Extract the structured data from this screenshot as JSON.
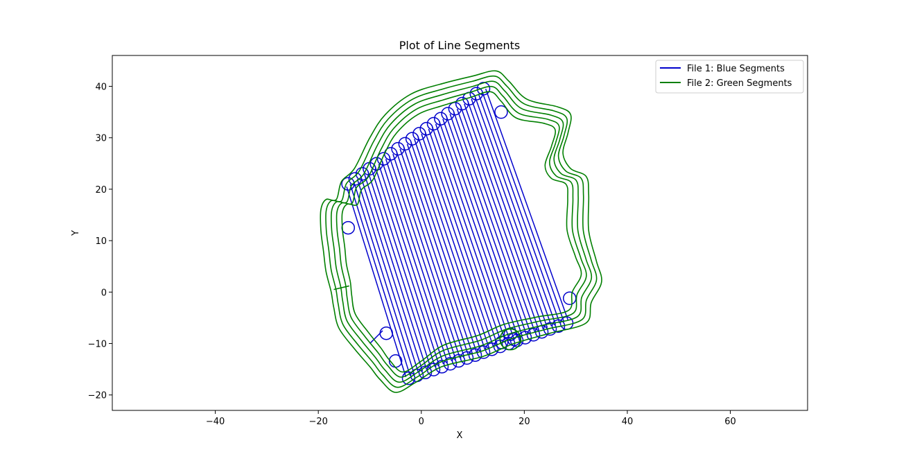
{
  "chart_data": {
    "type": "line",
    "title": "Plot of Line Segments",
    "xlabel": "X",
    "ylabel": "Y",
    "xlim": [
      -60,
      75
    ],
    "ylim": [
      -23,
      46
    ],
    "xticks": [
      -40,
      -20,
      0,
      20,
      40,
      60
    ],
    "yticks": [
      -20,
      -10,
      0,
      10,
      20,
      30,
      40
    ],
    "grid": false,
    "legend_position": "top-right",
    "series": [
      {
        "name": "File 1: Blue Segments",
        "color": "#0000cc",
        "style": "serpentine raster fill of a tilted rectangle with circular turn loops",
        "corners": [
          [
            -14.5,
            20.5
          ],
          [
            12.5,
            39.5
          ],
          [
            28.5,
            -5.5
          ],
          [
            -3.0,
            -16.5
          ]
        ],
        "passes": 40,
        "loops": [
          [
            -14.2,
            12.5
          ],
          [
            15.5,
            35.0
          ],
          [
            28.8,
            -1.2
          ],
          [
            -6.8,
            -8.0
          ],
          [
            -5.0,
            -13.4
          ],
          [
            15.6,
            -9.8
          ],
          [
            17.3,
            -8.2
          ],
          [
            18.0,
            -9.2
          ]
        ],
        "extra_polyline": [
          [
            -10,
            -10
          ],
          [
            -7.5,
            -7.5
          ]
        ]
      },
      {
        "name": "File 2: Green Segments",
        "color": "#007f00",
        "style": "5 concentric offset contours around the blue region",
        "outer_contour": [
          [
            -16.5,
            18
          ],
          [
            -15.5,
            21.5
          ],
          [
            -13,
            24
          ],
          [
            -10,
            30
          ],
          [
            -7,
            34.5
          ],
          [
            -2,
            38.5
          ],
          [
            4,
            40.5
          ],
          [
            10,
            42
          ],
          [
            14.5,
            43
          ],
          [
            17,
            41
          ],
          [
            20.5,
            37.5
          ],
          [
            26.5,
            36
          ],
          [
            29,
            34.5
          ],
          [
            28.5,
            31
          ],
          [
            27.5,
            27
          ],
          [
            29,
            24
          ],
          [
            32,
            22.5
          ],
          [
            32.5,
            19
          ],
          [
            32.5,
            12
          ],
          [
            34,
            6
          ],
          [
            35,
            2
          ],
          [
            33,
            -2
          ],
          [
            32,
            -6
          ],
          [
            25,
            -8
          ],
          [
            18,
            -10
          ],
          [
            12,
            -12.5
          ],
          [
            4,
            -14.5
          ],
          [
            -1,
            -17.5
          ],
          [
            -5,
            -19.5
          ],
          [
            -8,
            -17
          ],
          [
            -10,
            -14.5
          ],
          [
            -13,
            -11
          ],
          [
            -16,
            -7
          ],
          [
            -17,
            -3
          ],
          [
            -17.5,
            0
          ],
          [
            -18.5,
            4
          ],
          [
            -19,
            8
          ],
          [
            -19.5,
            12
          ],
          [
            -19.5,
            16
          ],
          [
            -18.5,
            18
          ]
        ],
        "offsets": [
          0,
          1,
          2,
          3,
          4
        ],
        "stub": [
          [
            -17,
            0.5
          ],
          [
            -14,
            1.2
          ]
        ],
        "loop": [
          17.3,
          -9.2
        ]
      }
    ]
  }
}
